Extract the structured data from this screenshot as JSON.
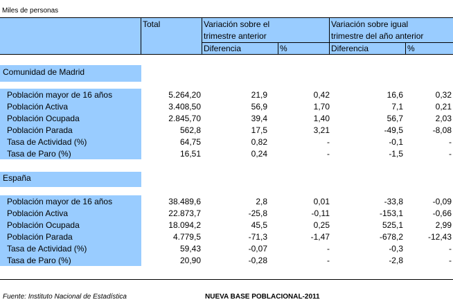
{
  "units_label": "Miles de personas",
  "headers": {
    "total": "Total",
    "var_trim_l1": "Variación sobre el",
    "var_trim_l2": "trimestre anterior",
    "var_anio_l1": "Variación sobre igual",
    "var_anio_l2": "trimestre del año anterior",
    "diferencia": "Diferencia",
    "pct": "%"
  },
  "sections": [
    {
      "title": "Comunidad de Madrid",
      "rows": [
        {
          "label": "Población mayor de 16 años",
          "total": "5.264,20",
          "dif_trim": "21,9",
          "pct_trim": "0,42",
          "dif_anio": "16,6",
          "pct_anio": "0,32"
        },
        {
          "label": "Población Activa",
          "total": "3.408,50",
          "dif_trim": "56,9",
          "pct_trim": "1,70",
          "dif_anio": "7,1",
          "pct_anio": "0,21"
        },
        {
          "label": "Población Ocupada",
          "total": "2.845,70",
          "dif_trim": "39,4",
          "pct_trim": "1,40",
          "dif_anio": "56,7",
          "pct_anio": "2,03"
        },
        {
          "label": "Población Parada",
          "total": "562,8",
          "dif_trim": "17,5",
          "pct_trim": "3,21",
          "dif_anio": "-49,5",
          "pct_anio": "-8,08"
        },
        {
          "label": "Tasa de Actividad (%)",
          "total": "64,75",
          "dif_trim": "0,82",
          "pct_trim": "-",
          "dif_anio": "-0,1",
          "pct_anio": "-"
        },
        {
          "label": "Tasa de Paro (%)",
          "total": "16,51",
          "dif_trim": "0,24",
          "pct_trim": "-",
          "dif_anio": "-1,5",
          "pct_anio": "-"
        }
      ]
    },
    {
      "title": "España",
      "rows": [
        {
          "label": "Población mayor de 16 años",
          "total": "38.489,6",
          "dif_trim": "2,8",
          "pct_trim": "0,01",
          "dif_anio": "-33,8",
          "pct_anio": "-0,09"
        },
        {
          "label": "Población Activa",
          "total": "22.873,7",
          "dif_trim": "-25,8",
          "pct_trim": "-0,11",
          "dif_anio": "-153,1",
          "pct_anio": "-0,66"
        },
        {
          "label": "Población Ocupada",
          "total": "18.094,2",
          "dif_trim": "45,5",
          "pct_trim": "0,25",
          "dif_anio": "525,1",
          "pct_anio": "2,99"
        },
        {
          "label": "Población Parada",
          "total": "4.779,5",
          "dif_trim": "-71,3",
          "pct_trim": "-1,47",
          "dif_anio": "-678,2",
          "pct_anio": "-12,43"
        },
        {
          "label": "Tasa de Actividad (%)",
          "total": "59,43",
          "dif_trim": "-0,07",
          "pct_trim": "-",
          "dif_anio": "-0,3",
          "pct_anio": "-"
        },
        {
          "label": "Tasa de Paro (%)",
          "total": "20,90",
          "dif_trim": "-0,28",
          "pct_trim": "-",
          "dif_anio": "-2,8",
          "pct_anio": "-"
        }
      ]
    }
  ],
  "footer": {
    "source": "Fuente: Instituto Nacional de Estadística",
    "note": "NUEVA BASE POBLACIONAL-2011"
  },
  "colors": {
    "header_band": "#99ccff",
    "rule": "#000000"
  }
}
